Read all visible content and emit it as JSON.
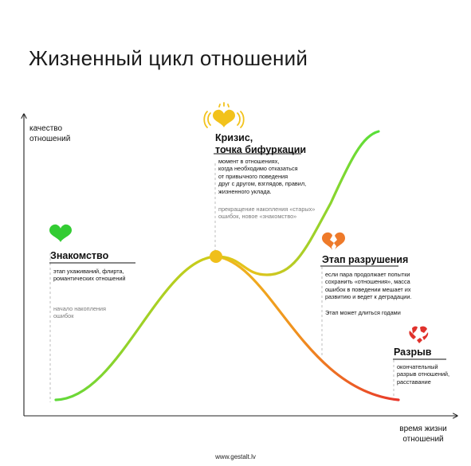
{
  "title": "Жизненный цикл отношений",
  "axes": {
    "y_label_line1": "качество",
    "y_label_line2": "отношений",
    "x_label_line1": "время жизни",
    "x_label_line2": "отношений"
  },
  "stages": {
    "acquaintance": {
      "title": "Знакомство",
      "desc": [
        "этап ухаживаний, флирта,",
        "романтических отношений"
      ],
      "note": [
        "начало накопления",
        "ошибок"
      ],
      "icon": "heart-icon",
      "color": "#33cc33"
    },
    "crisis": {
      "title": [
        "Кризис,",
        "точка бифуркации"
      ],
      "desc": [
        "момент в отношениях,",
        "когда необходимо отказаться",
        "от привычного поведения",
        "друг с другом, взглядов, правил,",
        "жизненного уклада."
      ],
      "note": [
        "прекращение накопления «старых»",
        "ошибок, новое «знакомство»"
      ],
      "icon": "glowing-heart-icon",
      "color": "#f2c21b"
    },
    "destruction": {
      "title": "Этап разрушения",
      "desc": [
        "если пара продолжает попытки",
        "сохранить «отношения», масса",
        "ошибок в поведении мешает их",
        "развитию и ведет к деградации."
      ],
      "note": "Этап может длиться годами",
      "icon": "broken-heart-icon",
      "color": "#ee7a2a"
    },
    "breakup": {
      "title": "Разрыв",
      "desc": [
        "окончательный",
        "разрыв отношений,",
        "расставание"
      ],
      "icon": "shattered-heart-icon",
      "color": "#e0322c"
    }
  },
  "footer": "www.gestalt.lv"
}
